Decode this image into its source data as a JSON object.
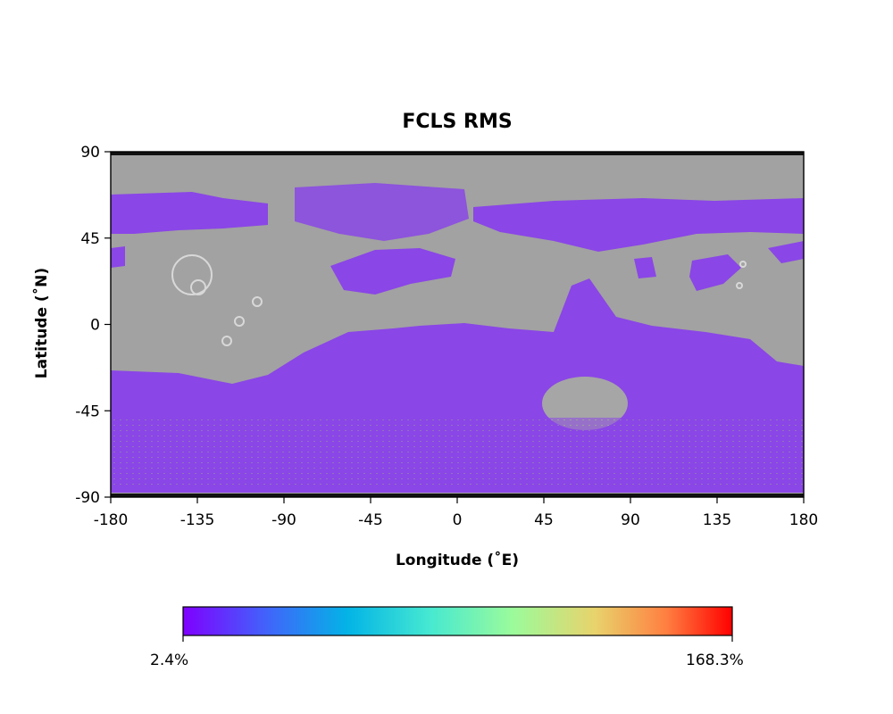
{
  "chart_data": {
    "type": "heatmap",
    "title": "FCLS RMS",
    "xlabel": "Longitude (˚E)",
    "ylabel": "Latitude (˚N)",
    "xlim": [
      -180,
      180
    ],
    "ylim": [
      -90,
      90
    ],
    "xticks": [
      "-180",
      "-135",
      "-90",
      "-45",
      "0",
      "45",
      "90",
      "135",
      "180"
    ],
    "yticks": [
      "90",
      "45",
      "0",
      "-45",
      "-90"
    ],
    "colormap": "rainbow",
    "colorbar": {
      "min_label": "2.4%",
      "max_label": "168.3%",
      "min": 2.4,
      "max": 168.3
    },
    "basemap": "grayscale shaded-relief map",
    "dominant_color": "#8a46e6",
    "background_color": "#a0a0a0",
    "grid": false
  }
}
